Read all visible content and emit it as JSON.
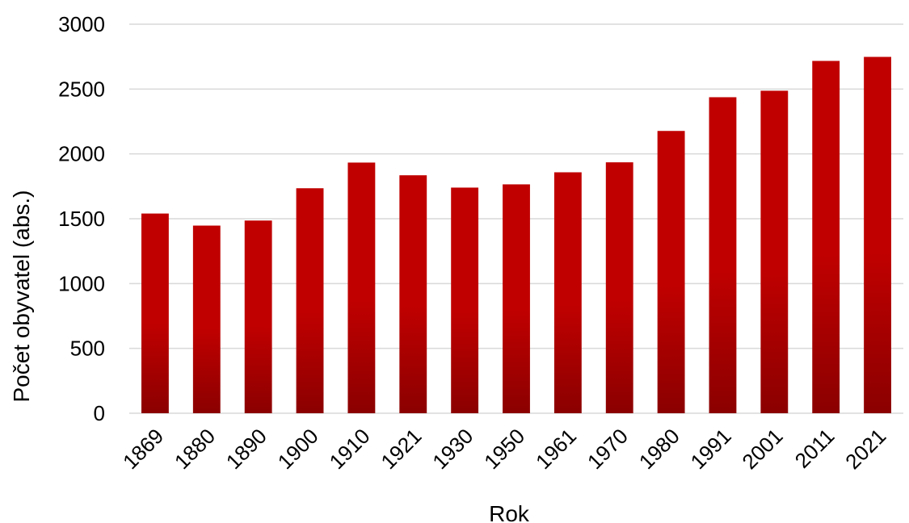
{
  "chart_data": {
    "type": "bar",
    "title": "",
    "xlabel": "Rok",
    "ylabel": "Počet obyvatel (abs.)",
    "ylim": [
      0,
      3000
    ],
    "yticks": [
      0,
      500,
      1000,
      1500,
      2000,
      2500,
      3000
    ],
    "grid": true,
    "legend": "none",
    "categories": [
      "1869",
      "1880",
      "1890",
      "1900",
      "1910",
      "1921",
      "1930",
      "1950",
      "1961",
      "1970",
      "1980",
      "1991",
      "2001",
      "2011",
      "2021"
    ],
    "series": [
      {
        "values": [
          1540,
          1447,
          1486,
          1735,
          1933,
          1835,
          1740,
          1765,
          1858,
          1935,
          2177,
          2437,
          2487,
          2717,
          2748
        ]
      }
    ],
    "colors": {
      "bar_top": "#c00000",
      "bar_bottom": "#8b0000",
      "grid": "#d9d9d9"
    }
  }
}
